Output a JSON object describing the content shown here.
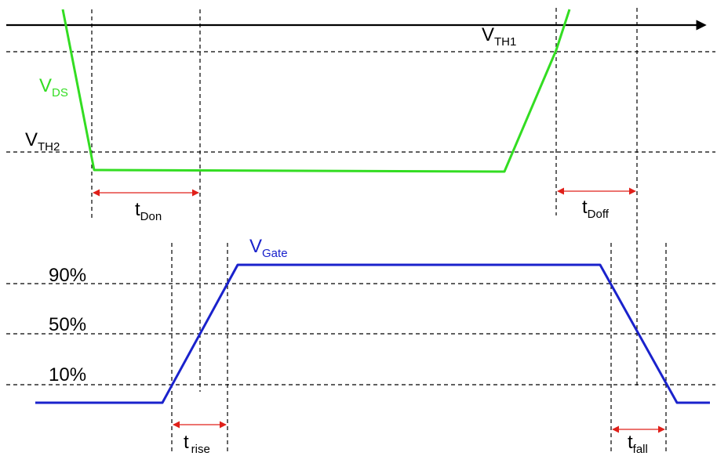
{
  "colors": {
    "vds": "#33dd22",
    "vgate": "#1a22cc",
    "arrow": "#e0201a",
    "grid": "#000000"
  },
  "labels": {
    "vth1": {
      "main": "V",
      "sub": "TH1"
    },
    "vth2": {
      "main": "V",
      "sub": "TH2"
    },
    "vds": {
      "main": "V",
      "sub": "DS"
    },
    "vgate": {
      "main": "V",
      "sub": "Gate"
    },
    "tdon": {
      "main": "t",
      "sub": "Don"
    },
    "tdoff": {
      "main": "t",
      "sub": "Doff"
    },
    "trise": {
      "main": "t",
      "sub": "rise"
    },
    "tfall": {
      "main": "t",
      "sub": "fall"
    },
    "p90": "90%",
    "p50": "50%",
    "p10": "10%"
  }
}
